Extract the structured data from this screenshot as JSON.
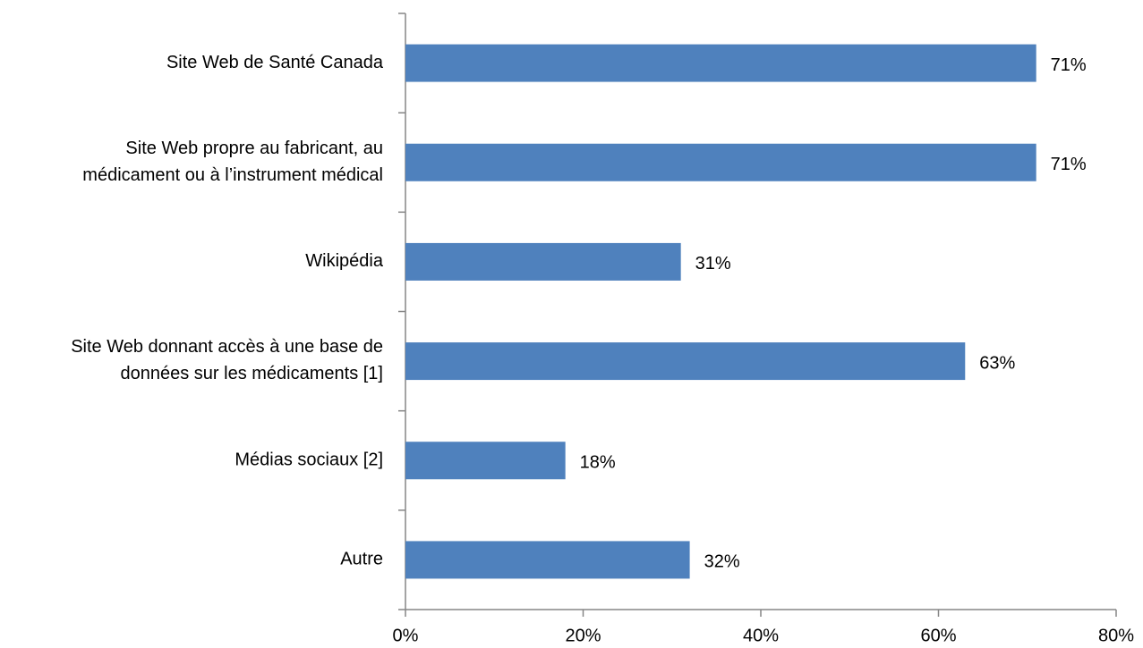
{
  "chart_data": {
    "type": "barh",
    "categories": [
      "Site Web de Santé Canada",
      "Site Web propre au fabricant, au\nmédicament ou à l’instrument médical",
      "Wikipédia",
      "Site Web donnant accès à une base de\ndonnées sur les médicaments [1]",
      "Médias sociaux [2]",
      "Autre"
    ],
    "values": [
      71,
      71,
      31,
      63,
      18,
      32
    ],
    "value_labels": [
      "71%",
      "71%",
      "31%",
      "63%",
      "18%",
      "32%"
    ],
    "color": "#4f81bd",
    "xlim": [
      0,
      80
    ],
    "xticks": [
      {
        "value": 0,
        "label": "0%"
      },
      {
        "value": 20,
        "label": "20%"
      },
      {
        "value": 40,
        "label": "40%"
      },
      {
        "value": 60,
        "label": "60%"
      },
      {
        "value": 80,
        "label": "80%"
      }
    ],
    "grid": false
  }
}
